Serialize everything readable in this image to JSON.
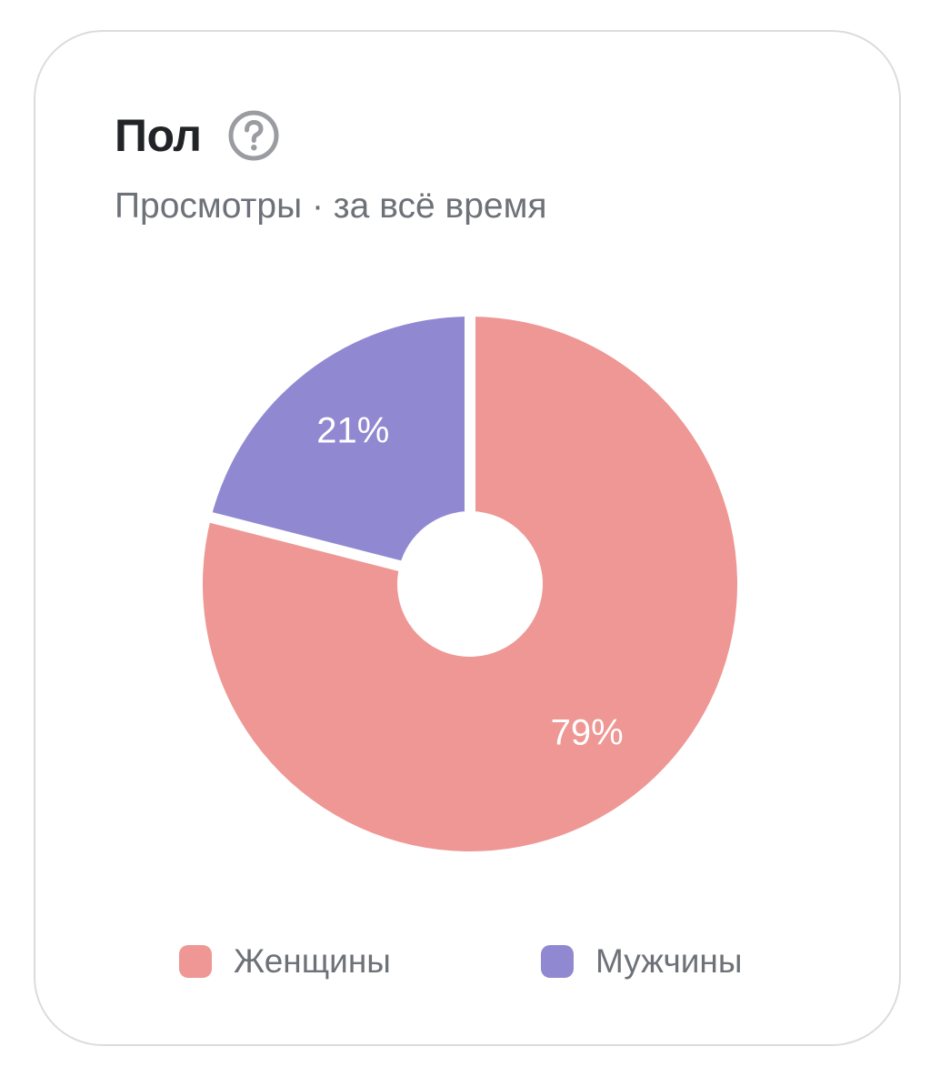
{
  "card": {
    "title": "Пол",
    "help_icon": "question-circle-icon",
    "subtitle": "Просмотры · за всё время"
  },
  "colors": {
    "female": "#ee9794",
    "male": "#9089d1",
    "title": "#222327",
    "muted": "#6d7178",
    "border": "#dcdcdf"
  },
  "chart_data": {
    "type": "pie",
    "donut": true,
    "start": "top",
    "direction": "clockwise",
    "series": [
      {
        "name": "Женщины",
        "value": 79,
        "label": "79%",
        "color": "#ee9794"
      },
      {
        "name": "Мужчины",
        "value": 21,
        "label": "21%",
        "color": "#9089d1"
      }
    ],
    "legend": {
      "position": "bottom",
      "items": [
        {
          "label": "Женщины",
          "color": "#ee9794"
        },
        {
          "label": "Мужчины",
          "color": "#9089d1"
        }
      ]
    }
  }
}
